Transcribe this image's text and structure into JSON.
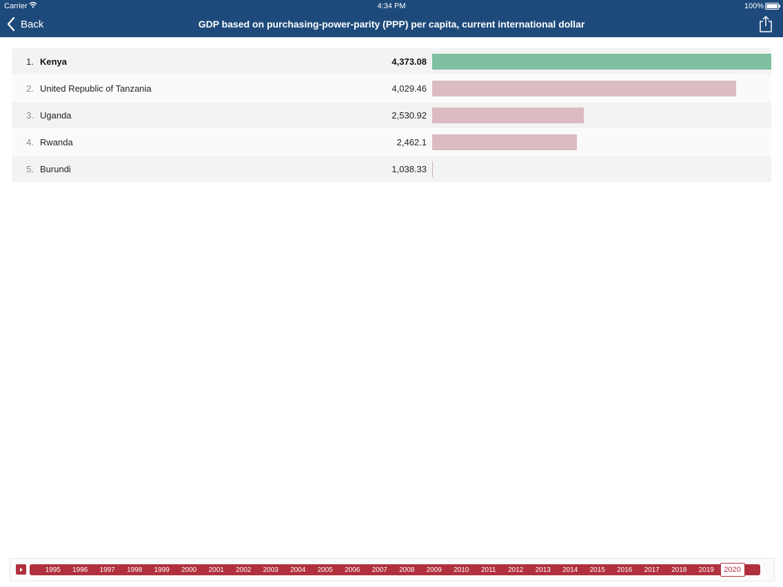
{
  "status": {
    "carrier": "Carrier",
    "time": "4:34 PM",
    "battery": "100%"
  },
  "nav": {
    "back_label": "Back",
    "title": "GDP based on purchasing-power-parity (PPP) per capita, current international dollar"
  },
  "colors": {
    "top_bar": "#7fc0a2",
    "other_bar": "#dbbcc2",
    "accent": "#b0313d",
    "header": "#1d4a7a"
  },
  "chart_data": {
    "type": "bar",
    "orientation": "horizontal",
    "categories": [
      "Kenya",
      "United Republic of Tanzania",
      "Uganda",
      "Rwanda",
      "Burundi"
    ],
    "values": [
      4373.08,
      4029.46,
      2530.92,
      2462.1,
      1038.33
    ],
    "value_labels": [
      "4,373.08",
      "4,029.46",
      "2,530.92",
      "2,462.1",
      "1,038.33"
    ],
    "ranks": [
      "1.",
      "2.",
      "3.",
      "4.",
      "5."
    ],
    "xlim": [
      1038.33,
      4373.08
    ]
  },
  "timeline": {
    "years": [
      "1995",
      "1996",
      "1997",
      "1998",
      "1999",
      "2000",
      "2001",
      "2002",
      "2003",
      "2004",
      "2005",
      "2006",
      "2007",
      "2008",
      "2009",
      "2010",
      "2011",
      "2012",
      "2013",
      "2014",
      "2015",
      "2016",
      "2017",
      "2018",
      "2019",
      "2020"
    ],
    "selected": "2020"
  }
}
